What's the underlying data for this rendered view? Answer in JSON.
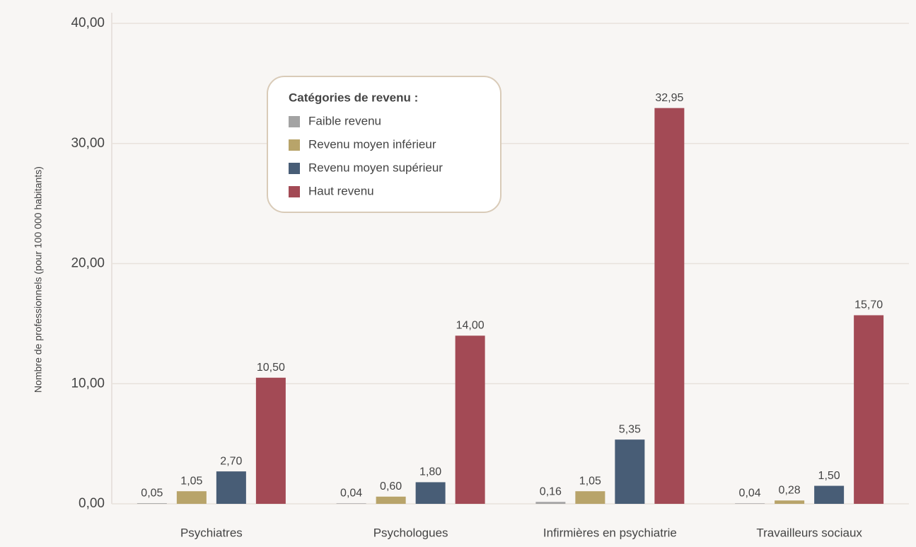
{
  "chart_data": {
    "type": "bar",
    "y_label": "Nombre de professionnels (pour 100 000 habitants)",
    "categories": [
      "Psychiatres",
      "Psychologues",
      "Infirmières en psychiatrie",
      "Travailleurs sociaux"
    ],
    "legend_title": "Catégories de revenu :",
    "series": [
      {
        "name": "Faible revenu",
        "color": "#a3a3a3",
        "values": [
          0.05,
          0.04,
          0.16,
          0.04
        ],
        "value_labels": [
          "0,05",
          "0,04",
          "0,16",
          "0,04"
        ]
      },
      {
        "name": "Revenu moyen inférieur",
        "color": "#b8a46a",
        "values": [
          1.05,
          0.6,
          1.05,
          0.28
        ],
        "value_labels": [
          "1,05",
          "0,60",
          "1,05",
          "0,28"
        ]
      },
      {
        "name": "Revenu moyen supérieur",
        "color": "#485d76",
        "values": [
          2.7,
          1.8,
          5.35,
          1.5
        ],
        "value_labels": [
          "2,70",
          "1,80",
          "5,35",
          "1,50"
        ]
      },
      {
        "name": "Haut revenu",
        "color": "#a34a55",
        "values": [
          10.5,
          14.0,
          32.95,
          15.7
        ],
        "value_labels": [
          "10,50",
          "14,00",
          "32,95",
          "15,70"
        ]
      }
    ],
    "ylim": [
      0,
      40
    ],
    "yticks": [
      {
        "value": 0,
        "label": "0,00"
      },
      {
        "value": 10,
        "label": "10,00"
      },
      {
        "value": 20,
        "label": "20,00"
      },
      {
        "value": 30,
        "label": "30,00"
      },
      {
        "value": 40,
        "label": "40,00"
      }
    ],
    "grid": true
  }
}
